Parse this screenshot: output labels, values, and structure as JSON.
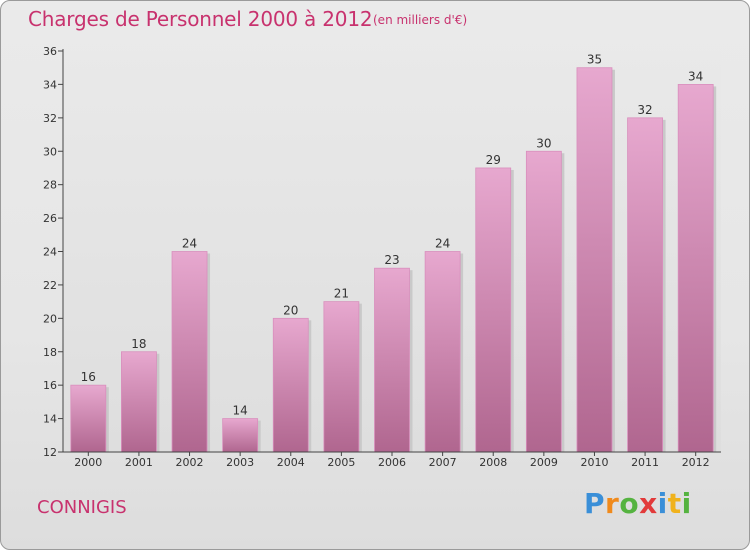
{
  "header": {
    "title": "Charges de Personnel 2000 à 2012",
    "subtitle": "(en milliers d'€)"
  },
  "footer": {
    "place": "CONNIGIS",
    "logo_icon": "proxiti-logo",
    "logo_letters": [
      "P",
      "r",
      "o",
      "x",
      "i",
      "t",
      "i"
    ]
  },
  "colors": {
    "accent": "#c8326e",
    "bar_top": "#e7a8cf",
    "bar_bottom": "#b0668f"
  },
  "chart_data": {
    "type": "bar",
    "title": "Charges de Personnel 2000 à 2012",
    "subtitle": "(en milliers d'€)",
    "categories": [
      "2000",
      "2001",
      "2002",
      "2003",
      "2004",
      "2005",
      "2006",
      "2007",
      "2008",
      "2009",
      "2010",
      "2011",
      "2012"
    ],
    "values": [
      16,
      18,
      24,
      14,
      20,
      21,
      23,
      24,
      29,
      30,
      35,
      32,
      34
    ],
    "yticks": [
      12,
      14,
      16,
      18,
      20,
      22,
      24,
      26,
      28,
      30,
      32,
      34,
      36
    ],
    "ylim": [
      12,
      36
    ],
    "grid": false,
    "data_labels": true
  }
}
